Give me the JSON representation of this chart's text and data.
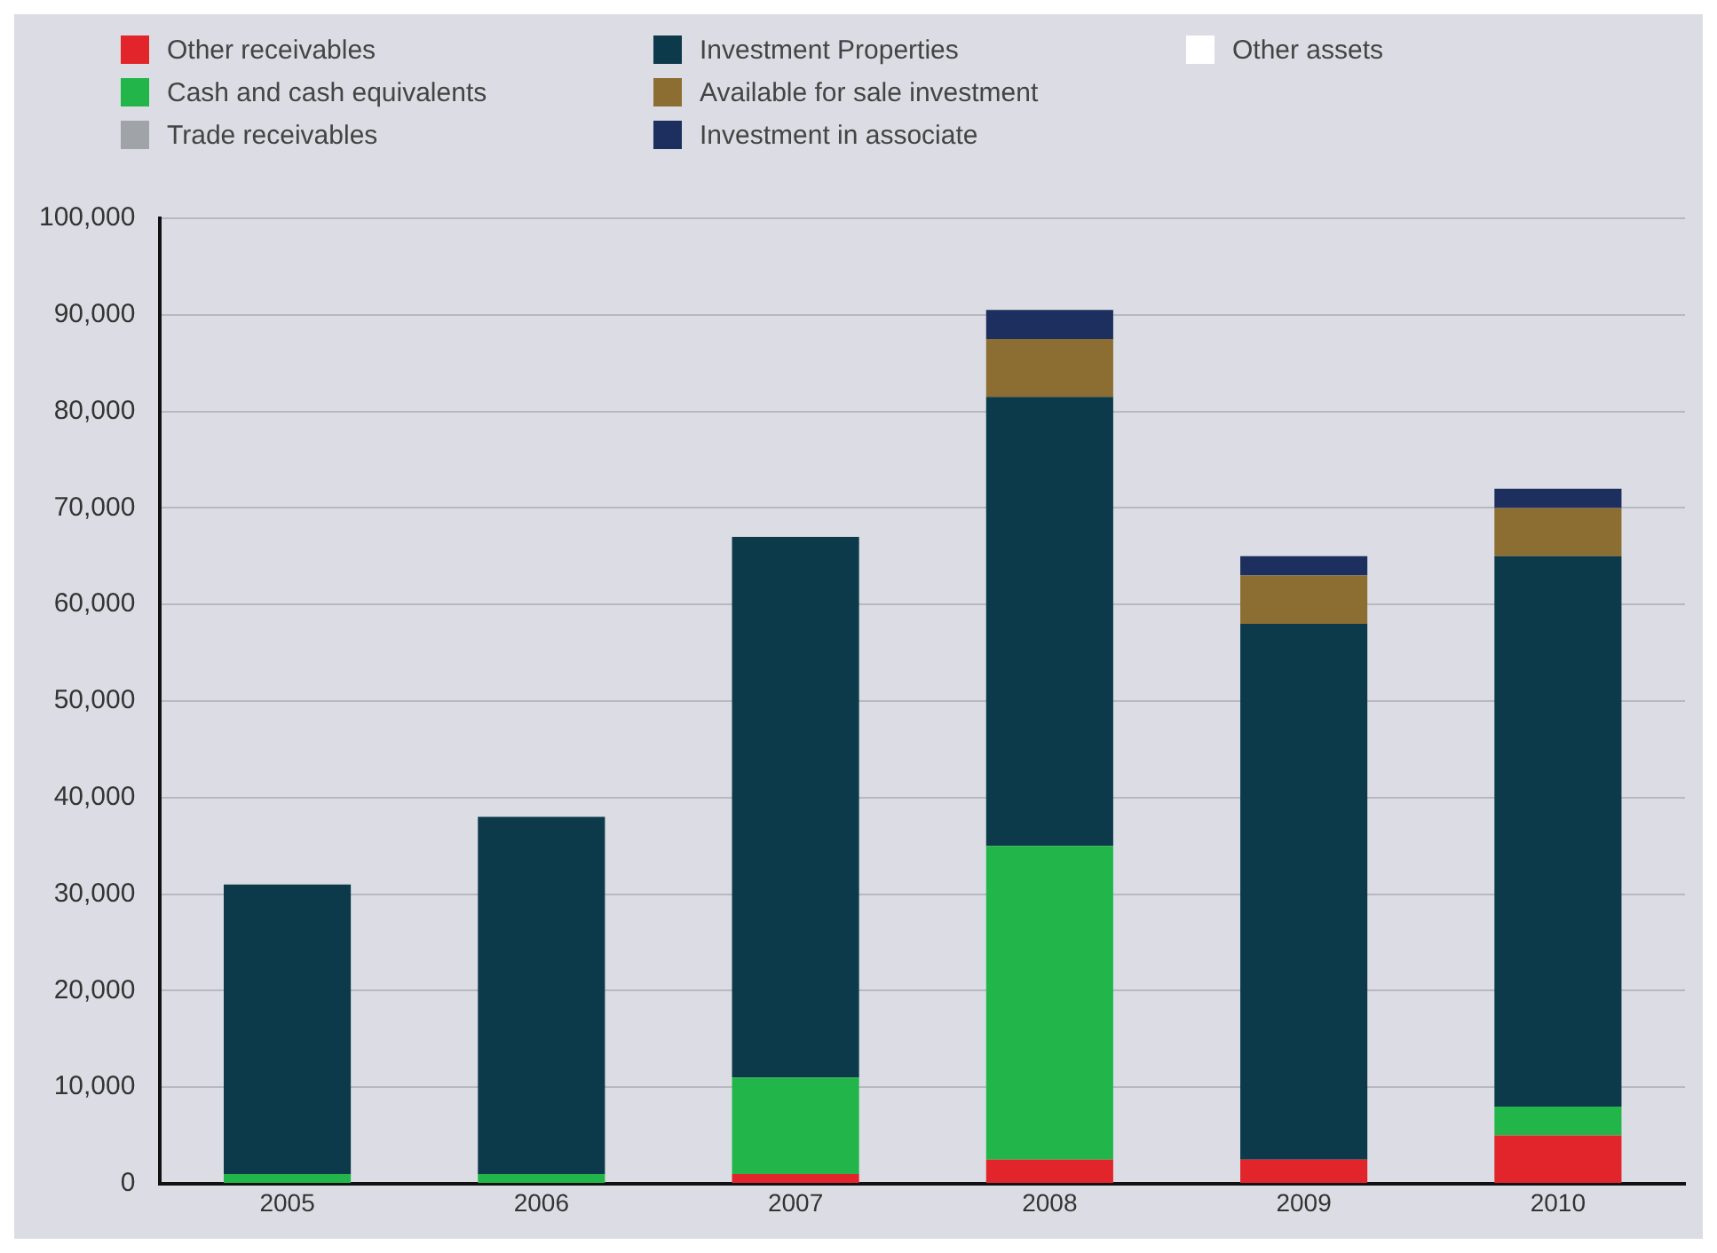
{
  "chart_data": {
    "type": "bar",
    "stacked": true,
    "categories": [
      "2005",
      "2006",
      "2007",
      "2008",
      "2009",
      "2010"
    ],
    "series": [
      {
        "name": "Other receivables",
        "color": "#e2242b",
        "values": [
          0,
          0,
          1000,
          2500,
          2500,
          5000
        ]
      },
      {
        "name": "Cash and cash equivalents",
        "color": "#22b64a",
        "values": [
          1000,
          1000,
          10000,
          32500,
          0,
          3000
        ]
      },
      {
        "name": "Trade receivables",
        "color": "#a0a4a8",
        "values": [
          0,
          0,
          0,
          0,
          0,
          0
        ]
      },
      {
        "name": "Investment Properties",
        "color": "#0d3a4a",
        "values": [
          30000,
          37000,
          56000,
          46500,
          55500,
          57000
        ]
      },
      {
        "name": "Available for sale investment",
        "color": "#8c6d32",
        "values": [
          0,
          0,
          0,
          6000,
          5000,
          5000
        ]
      },
      {
        "name": "Investment in associate",
        "color": "#1c2f5e",
        "values": [
          0,
          0,
          0,
          3000,
          2000,
          2000
        ]
      },
      {
        "name": "Other assets",
        "color": "#ffffff",
        "values": [
          0,
          0,
          0,
          0,
          0,
          0
        ]
      }
    ],
    "ylim": [
      0,
      100000
    ],
    "yticks": [
      0,
      {
        "value": 10000,
        "label": "10,000"
      },
      {
        "value": 20000,
        "label": "20,000"
      },
      {
        "value": 30000,
        "label": "30,000"
      },
      {
        "value": 40000,
        "label": "40,000"
      },
      {
        "value": 50000,
        "label": "50,000"
      },
      {
        "value": 60000,
        "label": "60,000"
      },
      {
        "value": 70000,
        "label": "70,000"
      },
      {
        "value": 80000,
        "label": "80,000"
      },
      {
        "value": 90000,
        "label": "90,000"
      },
      {
        "value": 100000,
        "label": "100,000"
      }
    ],
    "grid": "y",
    "legend": "top"
  }
}
